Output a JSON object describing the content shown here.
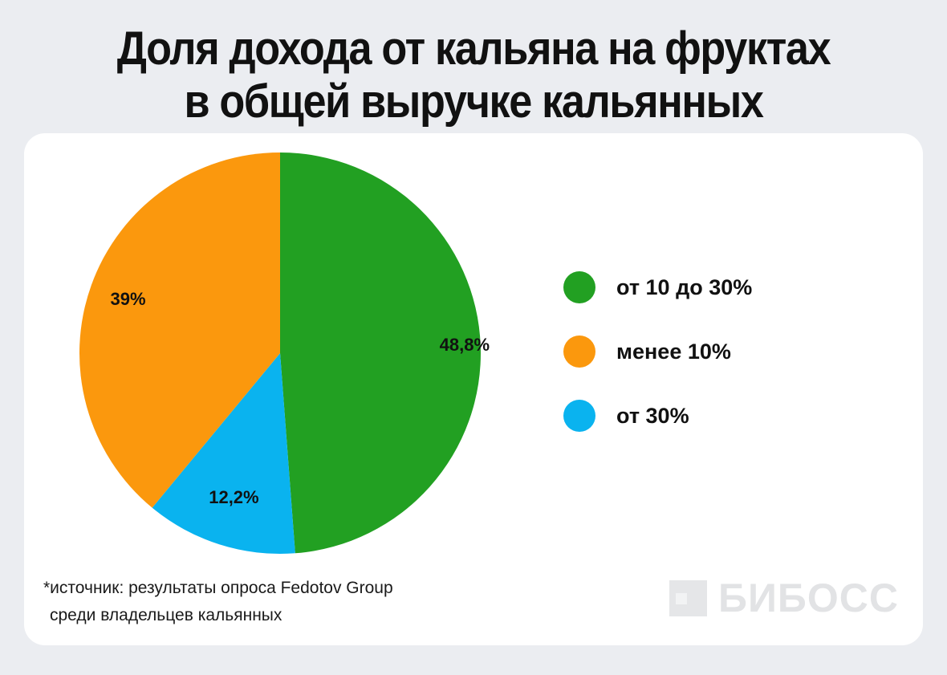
{
  "title": {
    "line1": "Доля дохода от кальяна на фруктах",
    "line2": "в общей выручке кальянных"
  },
  "chart_data": {
    "type": "pie",
    "slices": [
      {
        "label": "от 10 до 30%",
        "value": 48.8,
        "value_label": "48,8%",
        "color": "#22a022"
      },
      {
        "label": "от 30%",
        "value": 12.2,
        "value_label": "12,2%",
        "color": "#0ab3ef"
      },
      {
        "label": "менее 10%",
        "value": 39,
        "value_label": "39%",
        "color": "#fb980d"
      }
    ],
    "legend_order": [
      "от 10 до 30%",
      "менее 10%",
      "от 30%"
    ],
    "legend_position": "right",
    "start_angle": "top, clockwise"
  },
  "source": {
    "line1": "*источник: результаты опроса Fedotov Group",
    "line2": "среди владельцев кальянных"
  },
  "logo": {
    "text": "БИБОСС"
  }
}
